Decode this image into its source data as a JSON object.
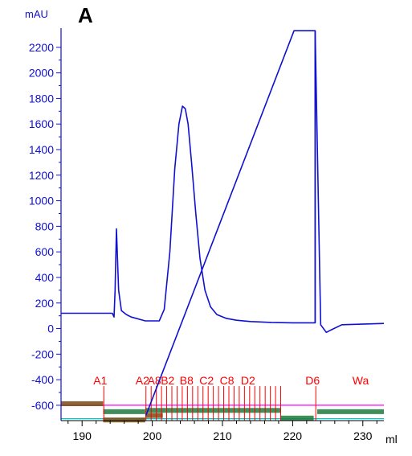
{
  "chart_data": {
    "type": "line",
    "panel_label": "A",
    "ylabel": "mAU",
    "xlabel": "ml",
    "ylim": [
      -720,
      2350
    ],
    "xlim": [
      187,
      233
    ],
    "yticks": [
      -600,
      -400,
      -200,
      0,
      200,
      400,
      600,
      800,
      1000,
      1200,
      1400,
      1600,
      1800,
      2000,
      2200
    ],
    "xticks": [
      190,
      200,
      210,
      220,
      230
    ],
    "series": [
      {
        "name": "",
        "color": "#1010d0",
        "x": [
          187,
          193,
          194.3,
          194.55,
          194.7,
          194.9,
          195.2,
          195.6,
          196.3,
          197,
          199,
          201,
          201.7,
          202.5,
          203.2,
          203.8,
          204.3,
          204.7,
          205.1,
          205.6,
          206.2,
          206.8,
          207.5,
          208.3,
          209.2,
          210.5,
          212,
          214,
          217,
          220,
          223.2,
          223.21,
          224,
          224.8,
          225.5,
          227,
          233
        ],
        "y": [
          120,
          120,
          120,
          90,
          300,
          780,
          300,
          140,
          110,
          90,
          60,
          60,
          150,
          600,
          1250,
          1600,
          1740,
          1720,
          1600,
          1300,
          900,
          550,
          300,
          170,
          110,
          80,
          65,
          55,
          48,
          45,
          45,
          2330,
          30,
          -30,
          -10,
          30,
          40
        ]
      },
      {
        "name": "",
        "color": "#1010d0",
        "x": [
          199.1,
          220.2,
          223.2,
          223.2
        ],
        "y": [
          -680,
          2330,
          2330,
          45
        ]
      }
    ],
    "fractions": {
      "color": "#ff0000",
      "labels": [
        {
          "text": "A1",
          "x": 193.1
        },
        {
          "text": "A2",
          "x": 199.1
        },
        {
          "text": "A8",
          "x": 200.8
        },
        {
          "text": "B2",
          "x": 202.7
        },
        {
          "text": "B8",
          "x": 205.4
        },
        {
          "text": "C2",
          "x": 208.2
        },
        {
          "text": "C8",
          "x": 211.1
        },
        {
          "text": "D2",
          "x": 214.1
        },
        {
          "text": "D6",
          "x": 223.3
        },
        {
          "text": "Wa",
          "x": 230.0
        }
      ],
      "ticks_start": 199.1,
      "ticks_end": 218.3,
      "ticks_count": 27
    },
    "baseline_traces": [
      {
        "name": "",
        "color": "#ff00ff",
        "x": [
          187,
          233
        ],
        "y": [
          -600,
          -600
        ]
      },
      {
        "name": "",
        "color": "#00c8c8",
        "x": [
          187,
          233
        ],
        "y": [
          -705,
          -705
        ]
      }
    ]
  }
}
